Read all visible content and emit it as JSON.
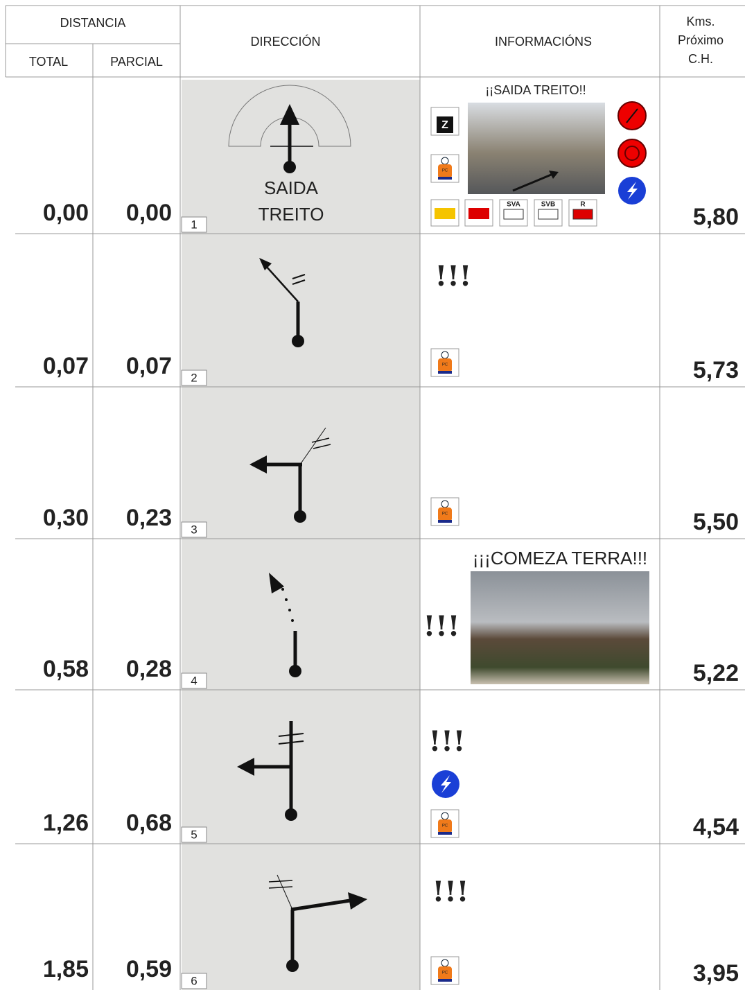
{
  "header": {
    "distance": "DISTANCIA",
    "total": "TOTAL",
    "partial": "PARCIAL",
    "direction": "DIRECCIÓN",
    "info": "INFORMACIÓNS",
    "next_km": [
      "Kms.",
      "Próximo",
      "C.H."
    ]
  },
  "icon_labels": {
    "pc": "PC",
    "sva": "SVA",
    "svb": "SVB",
    "r": "R",
    "z": "Z"
  },
  "rows": [
    {
      "total": "0,00",
      "partial": "0,00",
      "step": "1",
      "direction": [
        "SAIDA",
        "TREITO"
      ],
      "info_title": "¡¡SAIDA TREITO!!",
      "next_km": "5,80"
    },
    {
      "total": "0,07",
      "partial": "0,07",
      "step": "2",
      "alert": "!!!",
      "next_km": "5,73"
    },
    {
      "total": "0,30",
      "partial": "0,23",
      "step": "3",
      "next_km": "5,50"
    },
    {
      "total": "0,58",
      "partial": "0,28",
      "step": "4",
      "alert": "!!!",
      "info_title": "¡¡¡COMEZA TERRA!!!",
      "next_km": "5,22"
    },
    {
      "total": "1,26",
      "partial": "0,68",
      "step": "5",
      "alert": "!!!",
      "next_km": "4,54"
    },
    {
      "total": "1,85",
      "partial": "0,59",
      "step": "6",
      "alert": "!!!",
      "next_km": "3,95"
    }
  ]
}
